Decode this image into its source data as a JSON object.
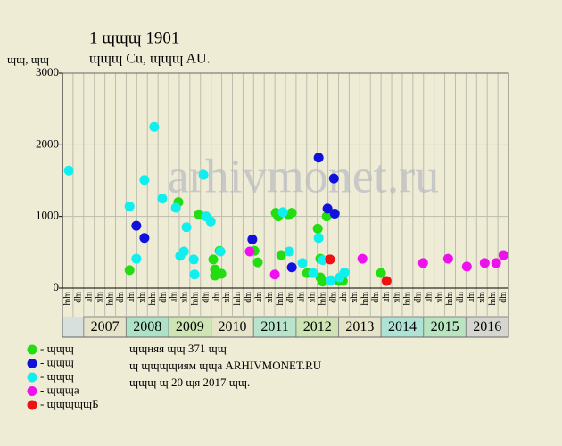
{
  "chart_data": {
    "type": "scatter",
    "title": "1 ɰɰɰ 1901",
    "subtitle": "ɰɰɰ Cu, ɰɰɰ AU.",
    "y_label": "ɰɰ, ɰɰ",
    "watermark": "arhivmonet.ru",
    "ylim": [
      0,
      3000
    ],
    "yticks": [
      0,
      1000,
      2000,
      3000
    ],
    "xlim": [
      2006.5,
      2017
    ],
    "years": [
      "2007",
      "2008",
      "2009",
      "2010",
      "2011",
      "2012",
      "2013",
      "2014",
      "2015",
      "2016"
    ],
    "year_colors": [
      "#e6e4c8",
      "#aee2c6",
      "#cfe4b4",
      "#e6e4c8",
      "#b9e4cc",
      "#cfe4b4",
      "#e6e4c8",
      "#aee2d4",
      "#b9e4c0",
      "#d6d6d0"
    ],
    "quarter_labels": [
      "ɰɰ",
      "ɰр",
      "ɰг",
      "ɰк"
    ],
    "grid": true,
    "series": [
      {
        "name": "- ɰɰɰ",
        "color": "#22dd11",
        "x": [
          2008.08,
          2009.23,
          2009.71,
          2010.05,
          2010.09,
          2010.09,
          2010.2,
          2010.24,
          2011.02,
          2011.1,
          2011.52,
          2011.58,
          2011.65,
          2011.82,
          2011.9,
          2012.26,
          2012.51,
          2012.57,
          2012.57,
          2012.63,
          2012.72,
          2013.01,
          2013.1,
          2014.0
        ],
        "values": [
          250,
          1200,
          1030,
          400,
          260,
          175,
          520,
          200,
          520,
          360,
          1050,
          1000,
          460,
          1020,
          1050,
          210,
          830,
          410,
          150,
          90,
          1000,
          100,
          100,
          210
        ]
      },
      {
        "name": "- ɰɰɰ",
        "color": "#1111dd",
        "x": [
          2008.24,
          2008.43,
          2010.97,
          2011.9,
          2012.53,
          2012.74,
          2012.89,
          2012.91
        ],
        "values": [
          870,
          700,
          680,
          290,
          1820,
          1110,
          1530,
          1040
        ]
      },
      {
        "name": "- ɰɰɰ",
        "color": "#11eeee",
        "x": [
          2006.65,
          2008.08,
          2008.24,
          2008.43,
          2008.66,
          2008.85,
          2009.17,
          2009.27,
          2009.36,
          2009.42,
          2009.59,
          2009.61,
          2009.82,
          2009.88,
          2009.99,
          2010.22,
          2011.69,
          2011.84,
          2012.15,
          2012.4,
          2012.53,
          2012.63,
          2012.82,
          2013.03,
          2013.14
        ],
        "values": [
          1640,
          1140,
          410,
          1510,
          2250,
          1250,
          1120,
          450,
          510,
          850,
          400,
          190,
          1580,
          1000,
          930,
          510,
          1060,
          510,
          350,
          210,
          700,
          390,
          110,
          150,
          220
        ]
      },
      {
        "name": "- ɰɰɰa",
        "color": "#ee11ee",
        "x": [
          2010.91,
          2011.5,
          2013.56,
          2014.99,
          2015.58,
          2016.02,
          2016.44,
          2016.71,
          2016.88
        ],
        "values": [
          510,
          190,
          410,
          350,
          410,
          300,
          350,
          350,
          460
        ]
      },
      {
        "name": "- ɰɰɰɰɰБ",
        "color": "#ee1111",
        "x": [
          2012.8,
          2014.13
        ],
        "values": [
          400,
          100
        ]
      }
    ],
    "notes": [
      "ɰɰняя ɰɰ 371 ɰɰ",
      "ɰ ɰɰɰɰиям ɰɰа ARHIVMONET.RU",
      "ɰɰɰ ɰ 20 ɰя 2017 ɰɰ."
    ]
  }
}
